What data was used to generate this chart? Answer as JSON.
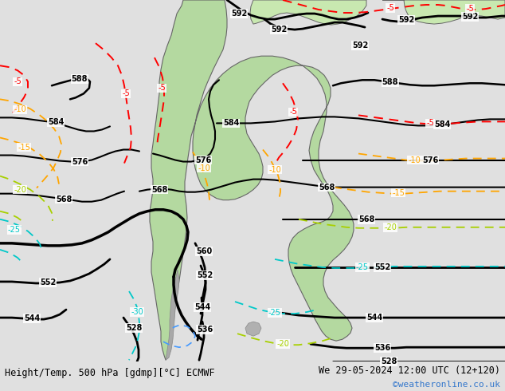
{
  "title_left": "Height/Temp. 500 hPa [gdmp][°C] ECMWF",
  "title_right": "We 29-05-2024 12:00 UTC (12+120)",
  "credit": "©weatheronline.co.uk",
  "bg_color": "#e0e0e0",
  "land_green": "#b4d9a0",
  "land_green2": "#c8e8b0",
  "land_gray": "#b0b0b0",
  "sea_color": "#e0e0e0",
  "border_color": "#666666",
  "bottom_bar_color": "#c8c8c8"
}
